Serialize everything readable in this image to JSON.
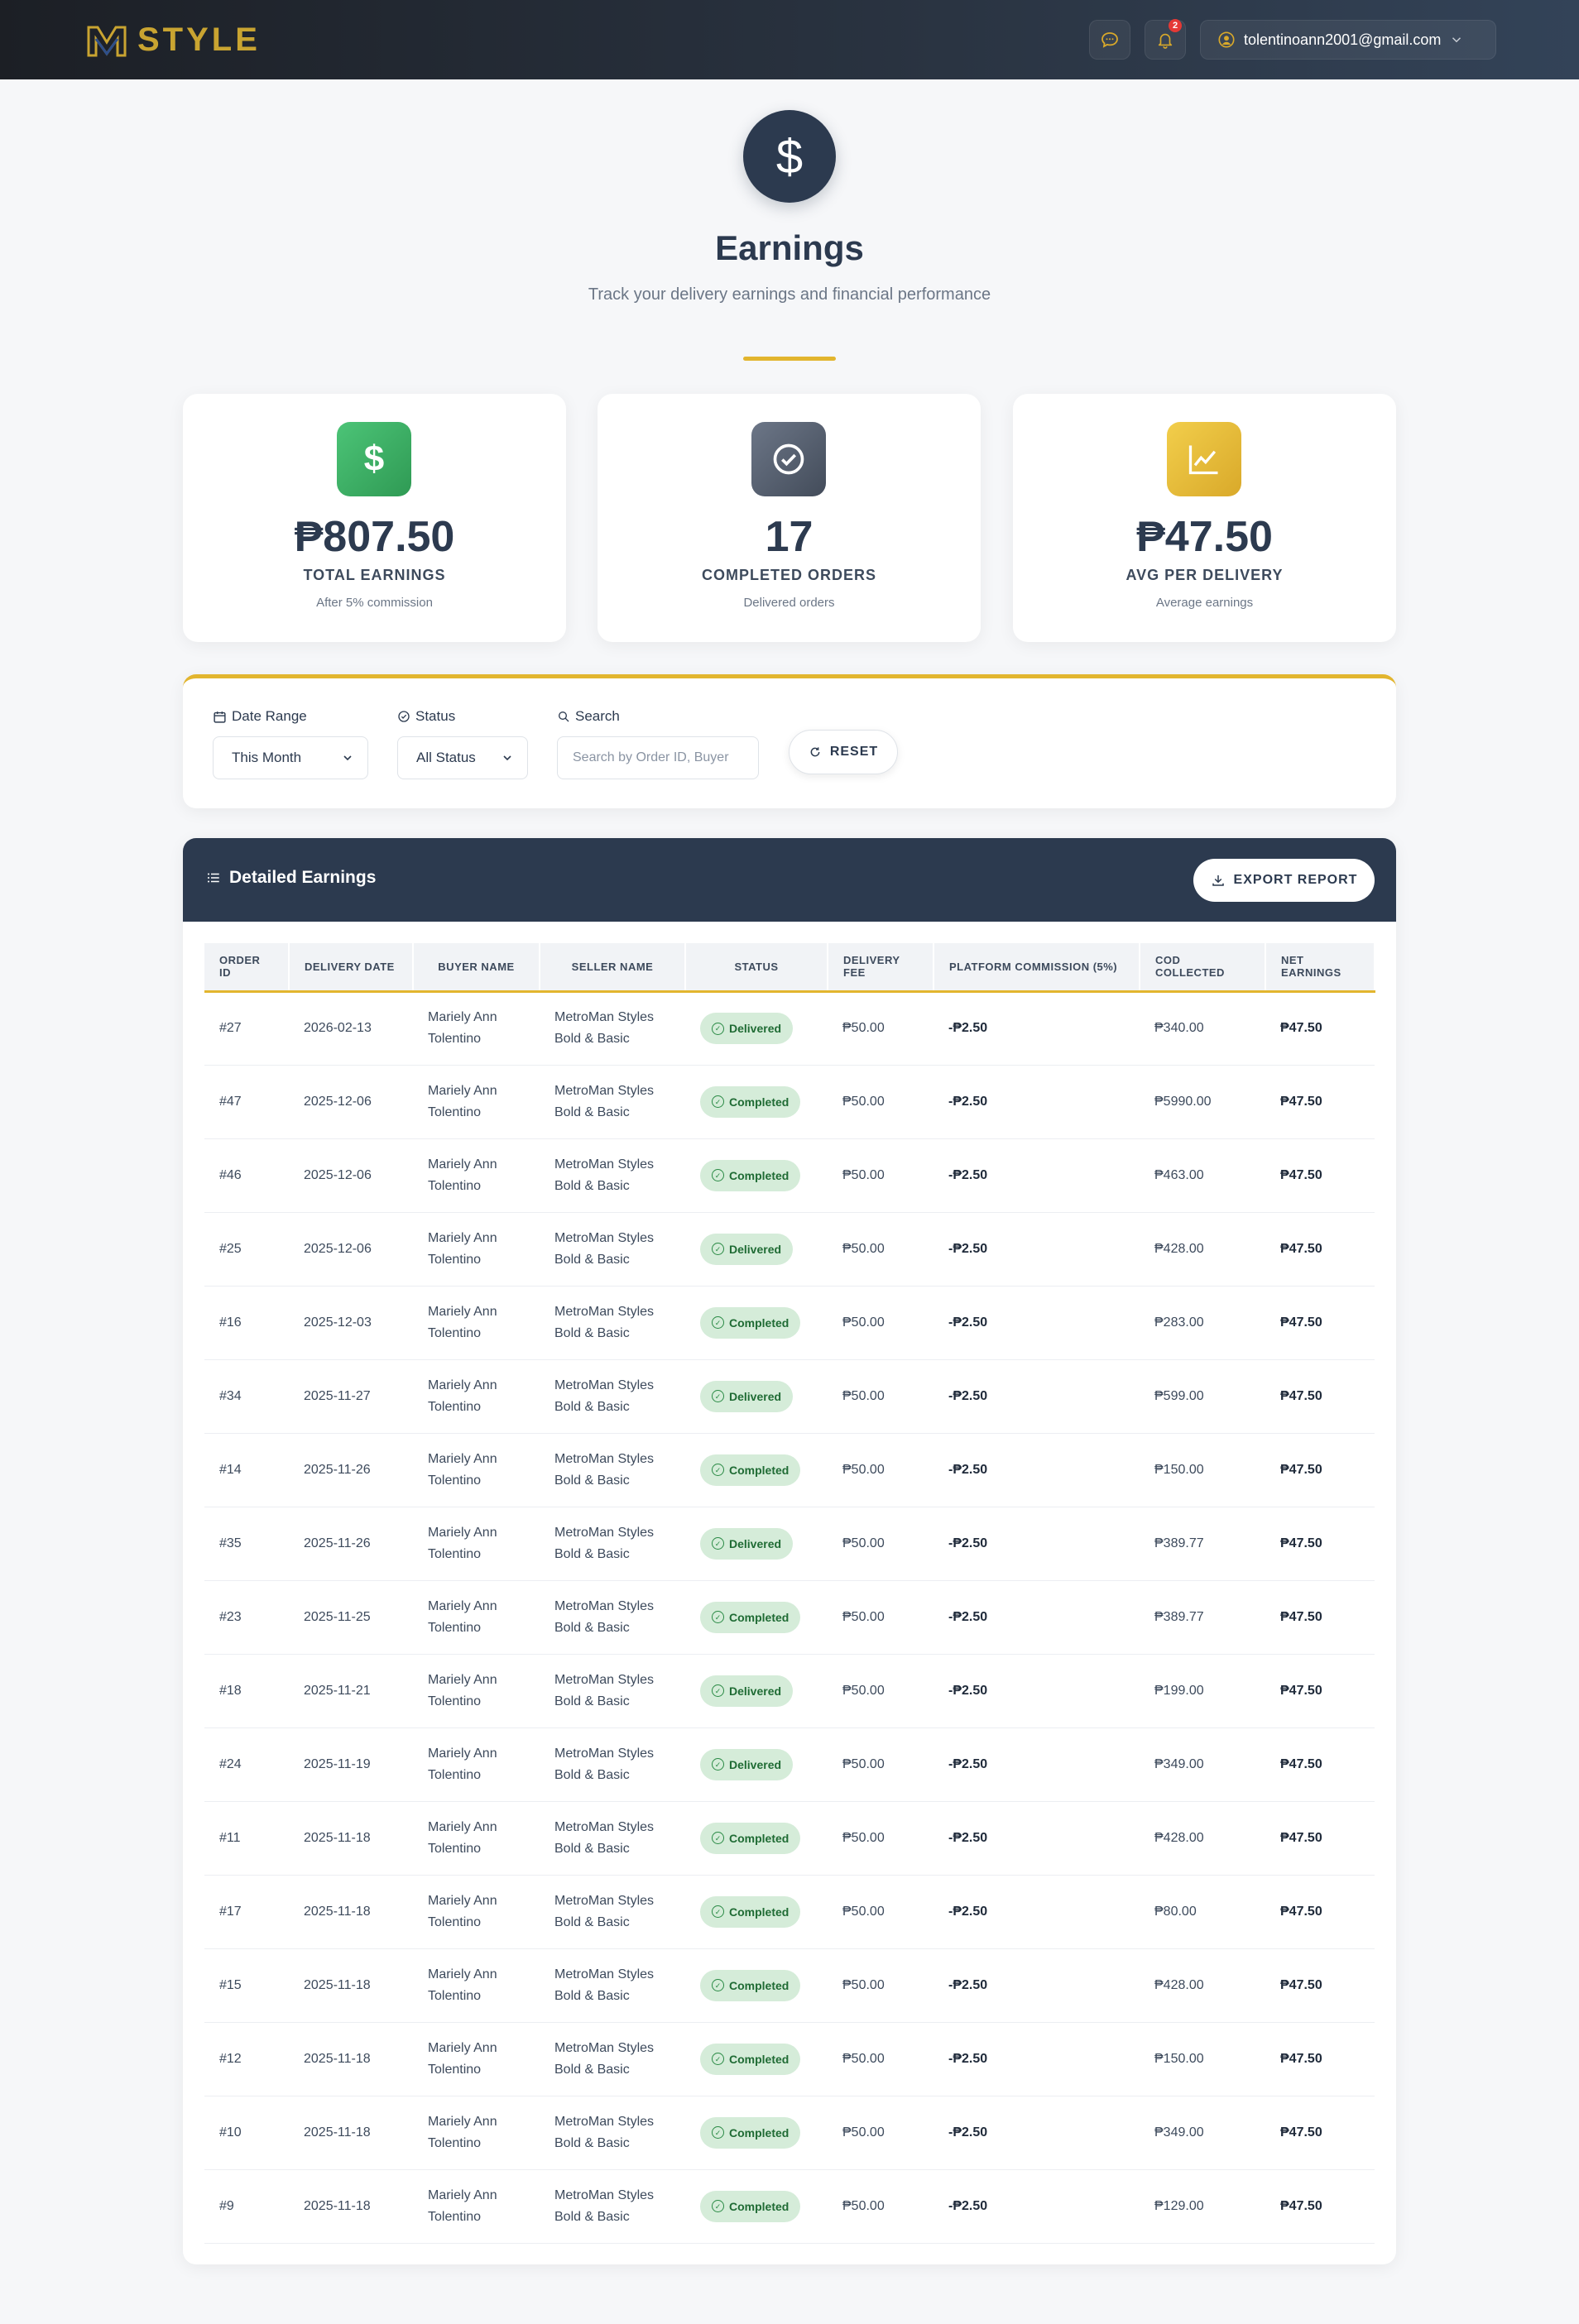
{
  "header": {
    "brand": "STYLE",
    "notification_count": "2",
    "user_email": "tolentinoann2001@gmail.com"
  },
  "hero": {
    "icon": "$",
    "title": "Earnings",
    "subtitle": "Track your delivery earnings and financial performance"
  },
  "stats": [
    {
      "value": "₱807.50",
      "label": "TOTAL EARNINGS",
      "sub": "After 5% commission",
      "icon": "dollar-icon",
      "color": "#3fae63"
    },
    {
      "value": "17",
      "label": "COMPLETED ORDERS",
      "sub": "Delivered orders",
      "icon": "check-circle-icon",
      "color": "#5b6575"
    },
    {
      "value": "₱47.50",
      "label": "AVG PER DELIVERY",
      "sub": "Average earnings",
      "icon": "trend-chart-icon",
      "color": "#e8bd2f"
    }
  ],
  "filters": {
    "date_label": "Date Range",
    "date_value": "This Month",
    "status_label": "Status",
    "status_value": "All Status",
    "search_label": "Search",
    "search_placeholder": "Search by Order ID, Buyer",
    "reset_label": "RESET"
  },
  "table": {
    "title": "Detailed Earnings",
    "export_label": "EXPORT REPORT",
    "columns": [
      "ORDER ID",
      "DELIVERY DATE",
      "BUYER NAME",
      "SELLER NAME",
      "STATUS",
      "DELIVERY FEE",
      "PLATFORM COMMISSION (5%)",
      "COD COLLECTED",
      "NET EARNINGS"
    ],
    "rows": [
      {
        "id": "#27",
        "date": "2026-02-13",
        "buyer1": "Mariely Ann",
        "buyer2": "Tolentino",
        "seller1": "MetroMan Styles",
        "seller2": "Bold & Basic",
        "status": "Delivered",
        "fee": "₱50.00",
        "commission": "-₱2.50",
        "cod": "₱340.00",
        "net": "₱47.50"
      },
      {
        "id": "#47",
        "date": "2025-12-06",
        "buyer1": "Mariely Ann",
        "buyer2": "Tolentino",
        "seller1": "MetroMan Styles",
        "seller2": "Bold & Basic",
        "status": "Completed",
        "fee": "₱50.00",
        "commission": "-₱2.50",
        "cod": "₱5990.00",
        "net": "₱47.50"
      },
      {
        "id": "#46",
        "date": "2025-12-06",
        "buyer1": "Mariely Ann",
        "buyer2": "Tolentino",
        "seller1": "MetroMan Styles",
        "seller2": "Bold & Basic",
        "status": "Completed",
        "fee": "₱50.00",
        "commission": "-₱2.50",
        "cod": "₱463.00",
        "net": "₱47.50"
      },
      {
        "id": "#25",
        "date": "2025-12-06",
        "buyer1": "Mariely Ann",
        "buyer2": "Tolentino",
        "seller1": "MetroMan Styles",
        "seller2": "Bold & Basic",
        "status": "Delivered",
        "fee": "₱50.00",
        "commission": "-₱2.50",
        "cod": "₱428.00",
        "net": "₱47.50"
      },
      {
        "id": "#16",
        "date": "2025-12-03",
        "buyer1": "Mariely Ann",
        "buyer2": "Tolentino",
        "seller1": "MetroMan Styles",
        "seller2": "Bold & Basic",
        "status": "Completed",
        "fee": "₱50.00",
        "commission": "-₱2.50",
        "cod": "₱283.00",
        "net": "₱47.50"
      },
      {
        "id": "#34",
        "date": "2025-11-27",
        "buyer1": "Mariely Ann",
        "buyer2": "Tolentino",
        "seller1": "MetroMan Styles",
        "seller2": "Bold & Basic",
        "status": "Delivered",
        "fee": "₱50.00",
        "commission": "-₱2.50",
        "cod": "₱599.00",
        "net": "₱47.50"
      },
      {
        "id": "#14",
        "date": "2025-11-26",
        "buyer1": "Mariely Ann",
        "buyer2": "Tolentino",
        "seller1": "MetroMan Styles",
        "seller2": "Bold & Basic",
        "status": "Completed",
        "fee": "₱50.00",
        "commission": "-₱2.50",
        "cod": "₱150.00",
        "net": "₱47.50"
      },
      {
        "id": "#35",
        "date": "2025-11-26",
        "buyer1": "Mariely Ann",
        "buyer2": "Tolentino",
        "seller1": "MetroMan Styles",
        "seller2": "Bold & Basic",
        "status": "Delivered",
        "fee": "₱50.00",
        "commission": "-₱2.50",
        "cod": "₱389.77",
        "net": "₱47.50"
      },
      {
        "id": "#23",
        "date": "2025-11-25",
        "buyer1": "Mariely Ann",
        "buyer2": "Tolentino",
        "seller1": "MetroMan Styles",
        "seller2": "Bold & Basic",
        "status": "Completed",
        "fee": "₱50.00",
        "commission": "-₱2.50",
        "cod": "₱389.77",
        "net": "₱47.50"
      },
      {
        "id": "#18",
        "date": "2025-11-21",
        "buyer1": "Mariely Ann",
        "buyer2": "Tolentino",
        "seller1": "MetroMan Styles",
        "seller2": "Bold & Basic",
        "status": "Delivered",
        "fee": "₱50.00",
        "commission": "-₱2.50",
        "cod": "₱199.00",
        "net": "₱47.50"
      },
      {
        "id": "#24",
        "date": "2025-11-19",
        "buyer1": "Mariely Ann",
        "buyer2": "Tolentino",
        "seller1": "MetroMan Styles",
        "seller2": "Bold & Basic",
        "status": "Delivered",
        "fee": "₱50.00",
        "commission": "-₱2.50",
        "cod": "₱349.00",
        "net": "₱47.50"
      },
      {
        "id": "#11",
        "date": "2025-11-18",
        "buyer1": "Mariely Ann",
        "buyer2": "Tolentino",
        "seller1": "MetroMan Styles",
        "seller2": "Bold & Basic",
        "status": "Completed",
        "fee": "₱50.00",
        "commission": "-₱2.50",
        "cod": "₱428.00",
        "net": "₱47.50"
      },
      {
        "id": "#17",
        "date": "2025-11-18",
        "buyer1": "Mariely Ann",
        "buyer2": "Tolentino",
        "seller1": "MetroMan Styles",
        "seller2": "Bold & Basic",
        "status": "Completed",
        "fee": "₱50.00",
        "commission": "-₱2.50",
        "cod": "₱80.00",
        "net": "₱47.50"
      },
      {
        "id": "#15",
        "date": "2025-11-18",
        "buyer1": "Mariely Ann",
        "buyer2": "Tolentino",
        "seller1": "MetroMan Styles",
        "seller2": "Bold & Basic",
        "status": "Completed",
        "fee": "₱50.00",
        "commission": "-₱2.50",
        "cod": "₱428.00",
        "net": "₱47.50"
      },
      {
        "id": "#12",
        "date": "2025-11-18",
        "buyer1": "Mariely Ann",
        "buyer2": "Tolentino",
        "seller1": "MetroMan Styles",
        "seller2": "Bold & Basic",
        "status": "Completed",
        "fee": "₱50.00",
        "commission": "-₱2.50",
        "cod": "₱150.00",
        "net": "₱47.50"
      },
      {
        "id": "#10",
        "date": "2025-11-18",
        "buyer1": "Mariely Ann",
        "buyer2": "Tolentino",
        "seller1": "MetroMan Styles",
        "seller2": "Bold & Basic",
        "status": "Completed",
        "fee": "₱50.00",
        "commission": "-₱2.50",
        "cod": "₱349.00",
        "net": "₱47.50"
      },
      {
        "id": "#9",
        "date": "2025-11-18",
        "buyer1": "Mariely Ann",
        "buyer2": "Tolentino",
        "seller1": "MetroMan Styles",
        "seller2": "Bold & Basic",
        "status": "Completed",
        "fee": "₱50.00",
        "commission": "-₱2.50",
        "cod": "₱129.00",
        "net": "₱47.50"
      }
    ]
  }
}
